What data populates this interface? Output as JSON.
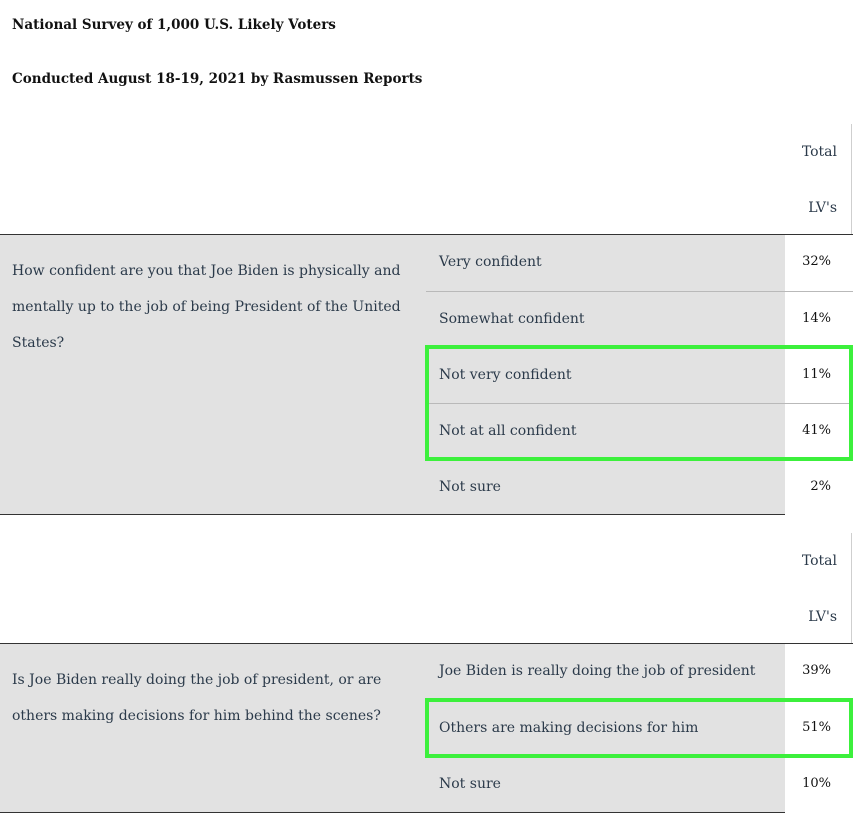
{
  "header": {
    "line1": "National Survey of 1,000 U.S. Likely Voters",
    "line2": "Conducted August 18-19, 2021 by Rasmussen Reports"
  },
  "colors": {
    "highlight": "#3cf03c",
    "row_bg": "#e2e2e2",
    "text": "#2b3a4a"
  },
  "tables": [
    {
      "column_header": [
        "Total",
        "LV's"
      ],
      "question": "How confident are you that Joe Biden is physically and mentally up to the job of being President of the United States?",
      "rows": [
        {
          "label": "Very confident",
          "value": "32%"
        },
        {
          "label": "Somewhat confident",
          "value": "14%"
        },
        {
          "label": "Not very confident",
          "value": "11%"
        },
        {
          "label": "Not at all confident",
          "value": "41%"
        },
        {
          "label": "Not sure",
          "value": "2%"
        }
      ]
    },
    {
      "column_header": [
        "Total",
        "LV's"
      ],
      "question": "Is Joe Biden really doing the job of president, or are others making decisions for him behind the scenes?",
      "rows": [
        {
          "label": "Joe Biden is really doing the job of president",
          "value": "39%"
        },
        {
          "label": "Others are making decisions for him",
          "value": "51%"
        },
        {
          "label": "Not sure",
          "value": "10%"
        }
      ]
    }
  ]
}
